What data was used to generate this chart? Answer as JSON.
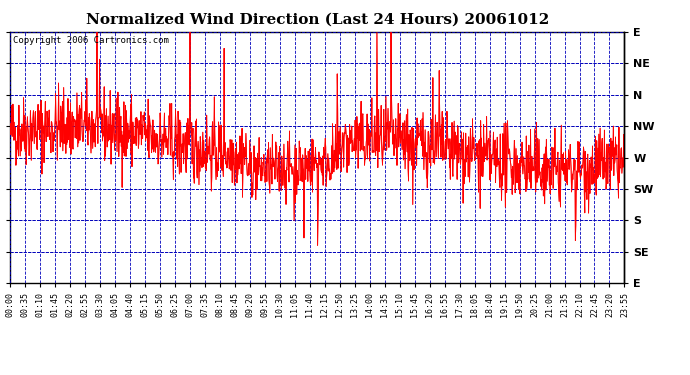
{
  "title": "Normalized Wind Direction (Last 24 Hours) 20061012",
  "copyright": "Copyright 2006 Cartronics.com",
  "ytick_labels": [
    "E",
    "NE",
    "N",
    "NW",
    "W",
    "SW",
    "S",
    "SE",
    "E"
  ],
  "ytick_values": [
    1.0,
    0.875,
    0.75,
    0.625,
    0.5,
    0.375,
    0.25,
    0.125,
    0.0
  ],
  "xtick_labels": [
    "00:00",
    "00:35",
    "01:10",
    "01:45",
    "02:20",
    "02:55",
    "03:30",
    "04:05",
    "04:40",
    "05:15",
    "05:50",
    "06:25",
    "07:00",
    "07:35",
    "08:10",
    "08:45",
    "09:20",
    "09:55",
    "10:30",
    "11:05",
    "11:40",
    "12:15",
    "12:50",
    "13:25",
    "14:00",
    "14:35",
    "15:10",
    "15:45",
    "16:20",
    "16:55",
    "17:30",
    "18:05",
    "18:40",
    "19:15",
    "19:50",
    "20:25",
    "21:00",
    "21:35",
    "22:10",
    "22:45",
    "23:20",
    "23:55"
  ],
  "line_color": "#ff0000",
  "grid_color": "#0000bb",
  "bg_color": "#ffffff",
  "title_fontsize": 11,
  "copyright_fontsize": 6.5,
  "xtick_fontsize": 6,
  "ytick_fontsize": 8,
  "seed": 42,
  "n_points": 1440
}
